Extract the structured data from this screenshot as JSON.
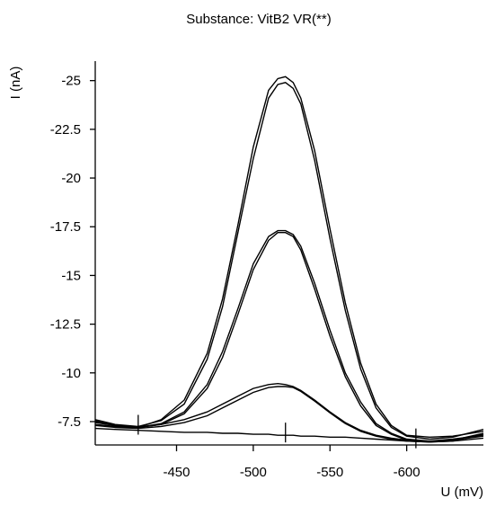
{
  "chart_data": {
    "type": "line",
    "title": "Substance: VitB2 VR(**)",
    "xlabel": "U (mV)",
    "ylabel": "I (nA)",
    "xlim": [
      -397,
      -650
    ],
    "ylim": [
      -6.3,
      -26.0
    ],
    "x_ticks": [
      -450,
      -500,
      -550,
      -600
    ],
    "x_tick_labels": [
      "-450",
      "-500",
      "-550",
      "-600"
    ],
    "y_ticks": [
      -7.5,
      -10,
      -12.5,
      -15,
      -17.5,
      -20,
      -22.5,
      -25
    ],
    "y_tick_labels": [
      "-7.5",
      "-10",
      "-12.5",
      "-15",
      "-17.5",
      "-20",
      "-22.5",
      "-25"
    ],
    "markers": [
      {
        "x": -425,
        "y": -7.2
      },
      {
        "x": -521,
        "y": -6.8
      },
      {
        "x": -606,
        "y": -6.5
      }
    ],
    "series": [
      {
        "x": [
          -397,
          -410,
          -425,
          -440,
          -455,
          -470,
          -480,
          -490,
          -500,
          -510,
          -516,
          -521,
          -526,
          -531,
          -540,
          -550,
          -560,
          -570,
          -580,
          -590,
          -600,
          -615,
          -630,
          -650
        ],
        "values": [
          -7.45,
          -7.3,
          -7.2,
          -7.6,
          -8.6,
          -11.0,
          -13.8,
          -17.6,
          -21.6,
          -24.5,
          -25.1,
          -25.2,
          -24.9,
          -24.1,
          -21.4,
          -17.4,
          -13.6,
          -10.5,
          -8.4,
          -7.3,
          -6.8,
          -6.7,
          -6.75,
          -7.0
        ]
      },
      {
        "x": [
          -397,
          -410,
          -425,
          -440,
          -455,
          -470,
          -480,
          -490,
          -500,
          -510,
          -516,
          -521,
          -526,
          -531,
          -540,
          -550,
          -560,
          -570,
          -580,
          -590,
          -600,
          -615,
          -630,
          -650
        ],
        "values": [
          -7.6,
          -7.35,
          -7.25,
          -7.55,
          -8.4,
          -10.7,
          -13.4,
          -17.2,
          -21.0,
          -24.1,
          -24.8,
          -24.9,
          -24.6,
          -23.8,
          -20.9,
          -16.9,
          -13.2,
          -10.2,
          -8.2,
          -7.2,
          -6.75,
          -6.6,
          -6.7,
          -7.1
        ]
      },
      {
        "x": [
          -397,
          -410,
          -425,
          -440,
          -455,
          -470,
          -480,
          -490,
          -500,
          -510,
          -516,
          -521,
          -526,
          -531,
          -540,
          -550,
          -560,
          -570,
          -580,
          -590,
          -600,
          -615,
          -630,
          -650
        ],
        "values": [
          -7.55,
          -7.3,
          -7.2,
          -7.4,
          -8.0,
          -9.4,
          -11.1,
          -13.3,
          -15.6,
          -17.0,
          -17.3,
          -17.3,
          -17.1,
          -16.5,
          -14.6,
          -12.2,
          -10.0,
          -8.5,
          -7.4,
          -6.9,
          -6.6,
          -6.5,
          -6.55,
          -6.9
        ]
      },
      {
        "x": [
          -397,
          -410,
          -425,
          -440,
          -455,
          -470,
          -480,
          -490,
          -500,
          -510,
          -516,
          -521,
          -526,
          -531,
          -540,
          -550,
          -560,
          -570,
          -580,
          -590,
          -600,
          -615,
          -630,
          -650
        ],
        "values": [
          -7.5,
          -7.3,
          -7.2,
          -7.35,
          -7.9,
          -9.2,
          -10.8,
          -13.0,
          -15.3,
          -16.8,
          -17.2,
          -17.2,
          -17.0,
          -16.3,
          -14.3,
          -11.9,
          -9.8,
          -8.3,
          -7.3,
          -6.85,
          -6.55,
          -6.45,
          -6.5,
          -6.85
        ]
      },
      {
        "x": [
          -397,
          -410,
          -425,
          -440,
          -455,
          -470,
          -480,
          -490,
          -500,
          -510,
          -516,
          -521,
          -526,
          -531,
          -540,
          -550,
          -560,
          -570,
          -580,
          -590,
          -600,
          -615,
          -630,
          -650
        ],
        "values": [
          -7.35,
          -7.25,
          -7.2,
          -7.35,
          -7.6,
          -8.0,
          -8.4,
          -8.8,
          -9.2,
          -9.4,
          -9.45,
          -9.4,
          -9.3,
          -9.1,
          -8.6,
          -8.0,
          -7.45,
          -7.05,
          -6.8,
          -6.65,
          -6.55,
          -6.5,
          -6.6,
          -6.8
        ]
      },
      {
        "x": [
          -397,
          -410,
          -425,
          -440,
          -455,
          -470,
          -480,
          -490,
          -500,
          -510,
          -516,
          -521,
          -526,
          -531,
          -540,
          -550,
          -560,
          -570,
          -580,
          -590,
          -600,
          -615,
          -630,
          -650
        ],
        "values": [
          -7.3,
          -7.2,
          -7.15,
          -7.25,
          -7.45,
          -7.8,
          -8.2,
          -8.6,
          -9.0,
          -9.25,
          -9.3,
          -9.3,
          -9.25,
          -9.05,
          -8.55,
          -7.95,
          -7.4,
          -7.0,
          -6.75,
          -6.6,
          -6.5,
          -6.45,
          -6.55,
          -6.75
        ]
      },
      {
        "x": [
          -397,
          -410,
          -425,
          -440,
          -455,
          -470,
          -480,
          -490,
          -500,
          -510,
          -516,
          -521,
          -526,
          -531,
          -540,
          -550,
          -560,
          -570,
          -580,
          -590,
          -600,
          -615,
          -630,
          -650
        ],
        "values": [
          -7.15,
          -7.1,
          -7.05,
          -7.0,
          -6.95,
          -6.95,
          -6.9,
          -6.9,
          -6.85,
          -6.85,
          -6.8,
          -6.8,
          -6.8,
          -6.75,
          -6.75,
          -6.7,
          -6.7,
          -6.65,
          -6.6,
          -6.55,
          -6.5,
          -6.45,
          -6.5,
          -6.65
        ]
      }
    ]
  }
}
